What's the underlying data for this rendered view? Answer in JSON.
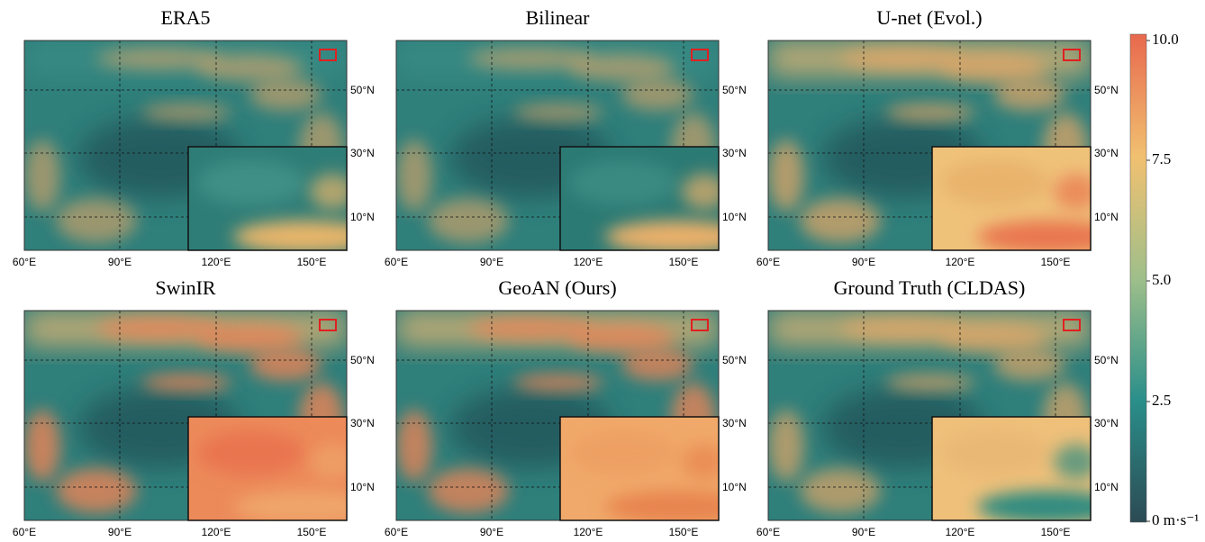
{
  "panels": [
    {
      "title": "ERA5"
    },
    {
      "title": "Bilinear"
    },
    {
      "title": "U-net (Evol.)"
    },
    {
      "title": "SwinIR"
    },
    {
      "title": "GeoAN (Ours)"
    },
    {
      "title": "Ground Truth (CLDAS)"
    }
  ],
  "lat_labels": [
    "50°N",
    "30°N",
    "10°N"
  ],
  "lon_labels": [
    "60°E",
    "90°E",
    "120°E",
    "150°E"
  ],
  "colorbar": {
    "ticks": [
      "10.0",
      "7.5",
      "5.0",
      "2.5",
      "0 m·s⁻¹"
    ]
  }
}
